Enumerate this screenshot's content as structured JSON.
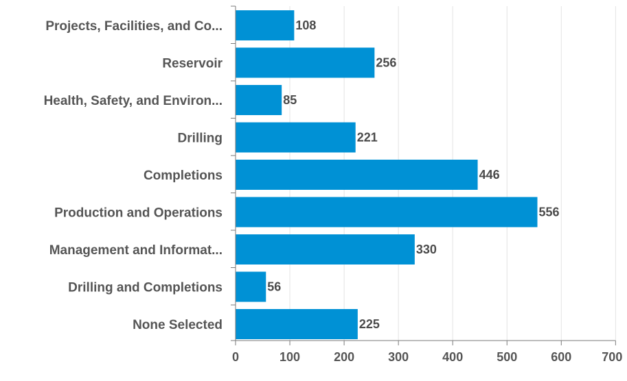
{
  "chart_data": {
    "type": "bar",
    "orientation": "horizontal",
    "title": "",
    "xlabel": "",
    "ylabel": "",
    "categories": [
      "Projects, Facilities, and Co...",
      "Reservoir",
      "Health, Safety, and Environ...",
      "Drilling",
      "Completions",
      "Production and Operations",
      "Management and Informat...",
      "Drilling and Completions",
      "None Selected"
    ],
    "values": [
      108,
      256,
      85,
      221,
      446,
      556,
      330,
      56,
      225
    ],
    "xlim": [
      0,
      700
    ],
    "xticks": [
      0,
      100,
      200,
      300,
      400,
      500,
      600,
      700
    ],
    "grid": true,
    "legend": "none",
    "bar_color": "#0091d5",
    "grid_color": "#e3e3e3",
    "axis_color": "#7a7a7a"
  }
}
